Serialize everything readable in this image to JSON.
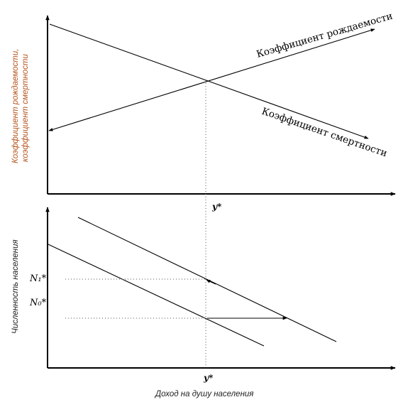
{
  "top_panel": {
    "ylabel_line1": "Коэффициент рождаемости,",
    "ylabel_line2": "коэффициент смертности",
    "birth_rate_label": "Коэффициент рождаемости",
    "death_rate_label": "Коэффициент смертности",
    "x_marker": "y*"
  },
  "bottom_panel": {
    "ylabel": "Численность населения",
    "n1_label": "N₁*",
    "n0_label": "N₀*",
    "x_marker": "y*",
    "xlabel": "Доход на душу населения"
  },
  "colors": {
    "axis": "#000000",
    "ylabel_top": "#b5561e",
    "ylabel_bottom": "#222222",
    "xlabel": "#222222"
  }
}
